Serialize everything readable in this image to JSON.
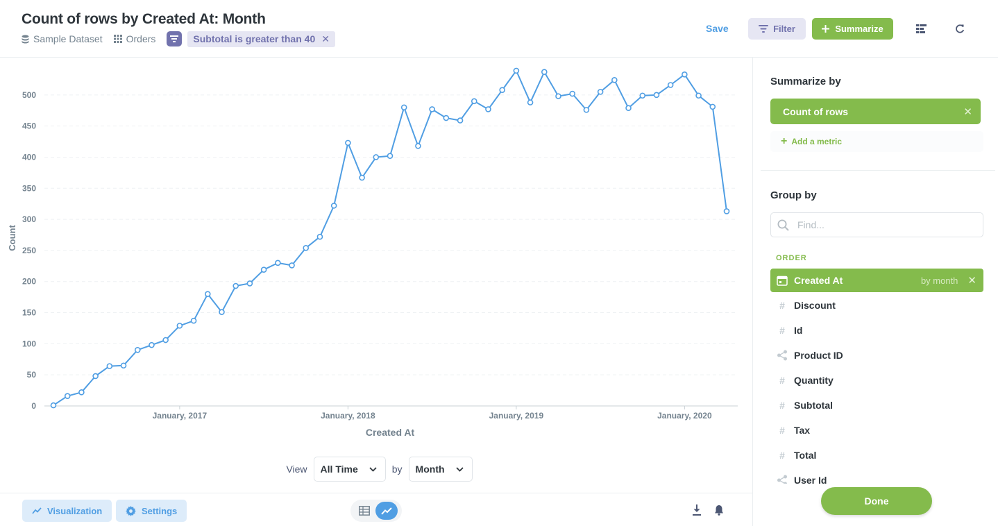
{
  "header": {
    "title": "Count of rows by Created At: Month",
    "breadcrumbs": [
      {
        "label": "Sample Dataset",
        "icon": "database-icon"
      },
      {
        "label": "Orders",
        "icon": "grid-icon"
      }
    ],
    "filter_pill": "Subtotal is greater than 40",
    "save_label": "Save",
    "filter_label": "Filter",
    "summarize_label": "Summarize"
  },
  "colors": {
    "accent_blue": "#509ee3",
    "accent_green": "#84bb4c",
    "filter_purple": "#7172ad",
    "line": "#509ee3"
  },
  "chart_data": {
    "type": "line",
    "xlabel": "Created At",
    "ylabel": "Count",
    "ylim": [
      0,
      540
    ],
    "yticks": [
      0,
      50,
      100,
      150,
      200,
      250,
      300,
      350,
      400,
      450,
      500
    ],
    "xtick_labels": [
      "January, 2017",
      "January, 2018",
      "January, 2019",
      "January, 2020"
    ],
    "xtick_months": [
      "2017-01",
      "2018-01",
      "2019-01",
      "2020-01"
    ],
    "grid": true,
    "x_months": [
      "2016-04",
      "2016-05",
      "2016-06",
      "2016-07",
      "2016-08",
      "2016-09",
      "2016-10",
      "2016-11",
      "2016-12",
      "2017-01",
      "2017-02",
      "2017-03",
      "2017-04",
      "2017-05",
      "2017-06",
      "2017-07",
      "2017-08",
      "2017-09",
      "2017-10",
      "2017-11",
      "2017-12",
      "2018-01",
      "2018-02",
      "2018-03",
      "2018-04",
      "2018-05",
      "2018-06",
      "2018-07",
      "2018-08",
      "2018-09",
      "2018-10",
      "2018-11",
      "2018-12",
      "2019-01",
      "2019-02",
      "2019-03",
      "2019-04",
      "2019-05",
      "2019-06",
      "2019-07",
      "2019-08",
      "2019-09",
      "2019-10",
      "2019-11",
      "2019-12",
      "2020-01",
      "2020-02",
      "2020-03",
      "2020-04"
    ],
    "values": [
      1,
      16,
      22,
      48,
      64,
      65,
      90,
      98,
      106,
      129,
      137,
      180,
      151,
      193,
      197,
      219,
      230,
      226,
      254,
      272,
      322,
      423,
      367,
      400,
      402,
      480,
      418,
      477,
      463,
      459,
      490,
      477,
      508,
      539,
      488,
      537,
      498,
      502,
      476,
      505,
      524,
      479,
      499,
      500,
      516,
      533,
      499,
      481,
      313
    ]
  },
  "view_controls": {
    "view_label": "View",
    "range_value": "All Time",
    "by_label": "by",
    "granularity_value": "Month"
  },
  "footer": {
    "visualization_label": "Visualization",
    "settings_label": "Settings"
  },
  "sidebar": {
    "summarize_by_title": "Summarize by",
    "metric": "Count of rows",
    "add_metric": "Add a metric",
    "group_by_title": "Group by",
    "find_placeholder": "Find...",
    "section_label": "ORDER",
    "dimensions": [
      {
        "label": "Created At",
        "icon": "calendar-icon",
        "selected": true,
        "by": "by month"
      },
      {
        "label": "Discount",
        "icon": "number-icon"
      },
      {
        "label": "Id",
        "icon": "number-icon"
      },
      {
        "label": "Product ID",
        "icon": "connection-icon"
      },
      {
        "label": "Quantity",
        "icon": "number-icon"
      },
      {
        "label": "Subtotal",
        "icon": "number-icon"
      },
      {
        "label": "Tax",
        "icon": "number-icon"
      },
      {
        "label": "Total",
        "icon": "number-icon"
      },
      {
        "label": "User Id",
        "icon": "connection-icon"
      }
    ],
    "done_label": "Done"
  }
}
